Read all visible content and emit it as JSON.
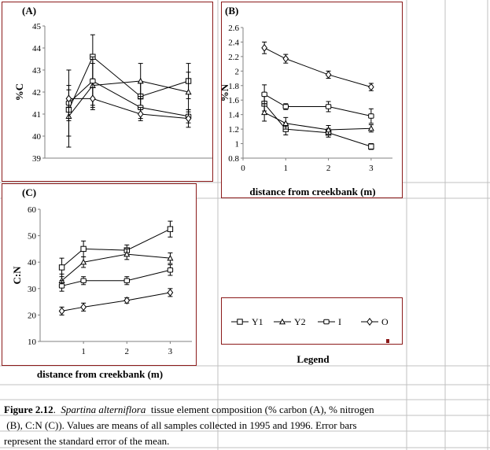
{
  "chart_data": [
    {
      "panel": "(A)",
      "type": "line",
      "ylabel": "%C",
      "xlabel": "",
      "x": [
        0.5,
        1,
        2,
        3
      ],
      "xlim": [
        0,
        3.5
      ],
      "xticks": [],
      "ylim": [
        39,
        45
      ],
      "yticks": [
        39,
        40,
        41,
        42,
        43,
        44,
        45
      ],
      "series": [
        {
          "name": "Y1",
          "marker": "square",
          "values": [
            41.2,
            43.6,
            41.8,
            42.5
          ],
          "errors": [
            0.5,
            1.0,
            0.6,
            0.8
          ]
        },
        {
          "name": "Y2",
          "marker": "triangle",
          "values": [
            40.9,
            42.3,
            42.5,
            42.0
          ],
          "errors": [
            1.4,
            1.0,
            0.8,
            0.9
          ]
        },
        {
          "name": "I",
          "marker": "circle",
          "values": [
            41.5,
            42.5,
            41.3,
            40.9
          ],
          "errors": [
            1.5,
            1.1,
            0.5,
            0.3
          ]
        },
        {
          "name": "O",
          "marker": "diamond",
          "values": [
            41.7,
            41.7,
            41.0,
            40.8
          ],
          "errors": [
            0.4,
            0.5,
            0.3,
            0.4
          ]
        }
      ]
    },
    {
      "panel": "(B)",
      "type": "line",
      "ylabel": "%N",
      "xlabel": "distance from creekbank (m)",
      "x": [
        0.5,
        1,
        2,
        3
      ],
      "xlim": [
        0,
        3.5
      ],
      "xticks": [
        0,
        1,
        2,
        3
      ],
      "ylim": [
        0.8,
        2.6
      ],
      "yticks": [
        0.8,
        1,
        1.2,
        1.4,
        1.6,
        1.8,
        2,
        2.2,
        2.4,
        2.6
      ],
      "series": [
        {
          "name": "Y1",
          "marker": "square",
          "values": [
            1.55,
            1.2,
            1.15,
            0.96
          ],
          "errors": [
            0.1,
            0.08,
            0.06,
            0.04
          ]
        },
        {
          "name": "Y2",
          "marker": "triangle",
          "values": [
            1.43,
            1.28,
            1.19,
            1.21
          ],
          "errors": [
            0.12,
            0.08,
            0.06,
            0.05
          ]
        },
        {
          "name": "I",
          "marker": "circle",
          "values": [
            1.68,
            1.51,
            1.51,
            1.38
          ],
          "errors": [
            0.13,
            0.04,
            0.07,
            0.1
          ]
        },
        {
          "name": "O",
          "marker": "diamond",
          "values": [
            2.32,
            2.17,
            1.95,
            1.78
          ],
          "errors": [
            0.08,
            0.06,
            0.05,
            0.05
          ]
        }
      ]
    },
    {
      "panel": "(C)",
      "type": "line",
      "ylabel": "C:N",
      "xlabel": "distance from creekbank (m)",
      "x": [
        0.5,
        1,
        2,
        3
      ],
      "xlim": [
        0,
        3.5
      ],
      "xticks": [
        1,
        2,
        3
      ],
      "ylim": [
        10,
        60
      ],
      "yticks": [
        10,
        20,
        30,
        40,
        50,
        60
      ],
      "series": [
        {
          "name": "Y1",
          "marker": "square",
          "values": [
            38,
            45,
            44.5,
            52.5
          ],
          "errors": [
            3.5,
            3,
            2,
            3
          ]
        },
        {
          "name": "Y2",
          "marker": "triangle",
          "values": [
            33,
            40,
            43,
            41.5
          ],
          "errors": [
            2.5,
            2,
            2,
            2
          ]
        },
        {
          "name": "I",
          "marker": "circle",
          "values": [
            31,
            33,
            33,
            37
          ],
          "errors": [
            2,
            1.5,
            1.5,
            2
          ]
        },
        {
          "name": "O",
          "marker": "diamond",
          "values": [
            21.5,
            23,
            25.5,
            28.5
          ],
          "errors": [
            1.5,
            1.5,
            1,
            1.5
          ]
        }
      ]
    }
  ],
  "legend": {
    "title": "Legend",
    "items": [
      {
        "label": "Y1",
        "marker": "square"
      },
      {
        "label": "Y2",
        "marker": "triangle"
      },
      {
        "label": "I",
        "marker": "circle"
      },
      {
        "label": "O",
        "marker": "diamond"
      }
    ]
  },
  "caption": {
    "figure": "Figure 2.12",
    "species": "Spartina alterniflora",
    "line1_rest": "tissue element composition  (% carbon (A), % nitrogen",
    "line2": "(B), C:N (C)).  Values are means of all samples collected in 1995 and 1996.  Error bars",
    "line3": "represent the standard error of the mean."
  },
  "colors": {
    "panel_border": "#8b1a1a",
    "grid": "#c0c0c0",
    "series": "#000000"
  }
}
